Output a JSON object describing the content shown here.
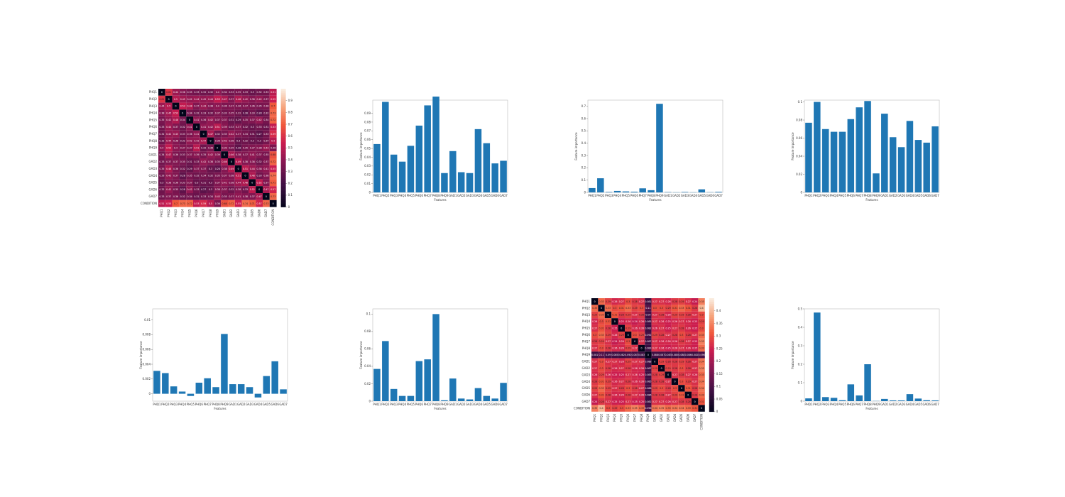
{
  "page": {
    "background": "#ffffff",
    "bar_color": "#1f77b4"
  },
  "labels": {
    "features": [
      "PHQ1",
      "PHQ2",
      "PHQ3",
      "PHQ4",
      "PHQ5",
      "PHQ6",
      "PHQ7",
      "PHQ8",
      "PHQ9",
      "GAD1",
      "GAD2",
      "GAD3",
      "GAD4",
      "GAD5",
      "GAD6",
      "GAD7"
    ],
    "features_cond": [
      "PHQ1",
      "PHQ2",
      "PHQ3",
      "PHQ4",
      "PHQ5",
      "PHQ6",
      "PHQ7",
      "PHQ8",
      "PHQ9",
      "GAD1",
      "GAD2",
      "GAD3",
      "GAD4",
      "GAD5",
      "GAD6",
      "GAD7",
      "CONDITION"
    ]
  },
  "chart_data": [
    {
      "id": "heatmap1",
      "type": "heatmap",
      "colormap": "rocket",
      "vmin": 0,
      "vmax": 1,
      "colorbar_ticks": [
        0,
        0.1,
        0.2,
        0.3,
        0.4,
        0.5,
        0.6,
        0.7,
        0.8,
        0.9
      ],
      "annot": true,
      "matrix": [
        [
          0,
          0.61,
          0.44,
          0.38,
          0.35,
          0.33,
          0.32,
          0.32,
          0.4,
          0.34,
          0.33,
          0.35,
          0.33,
          0.3,
          0.32,
          0.33,
          0.51
        ],
        [
          0.61,
          0,
          0.5,
          0.45,
          0.42,
          0.44,
          0.42,
          0.44,
          0.53,
          0.47,
          0.37,
          0.48,
          0.42,
          0.38,
          0.42,
          0.37,
          0.55
        ],
        [
          0.44,
          0.5,
          0,
          0.53,
          0.48,
          0.37,
          0.43,
          0.38,
          0.4,
          0.36,
          0.37,
          0.36,
          0.37,
          0.36,
          0.35,
          0.36,
          0.7
        ],
        [
          0.38,
          0.45,
          0.53,
          0,
          0.34,
          0.32,
          0.33,
          0.32,
          0.37,
          0.33,
          0.35,
          0.32,
          0.28,
          0.33,
          0.28,
          0.32,
          0.73
        ],
        [
          0.35,
          0.42,
          0.48,
          0.34,
          0,
          0.41,
          0.36,
          0.42,
          0.37,
          0.37,
          0.31,
          0.29,
          0.35,
          0.37,
          0.42,
          0.34,
          0.72
        ],
        [
          0.33,
          0.44,
          0.37,
          0.32,
          0.41,
          0,
          0.41,
          0.42,
          0.51,
          0.39,
          0.33,
          0.37,
          0.32,
          0.3,
          0.33,
          0.31,
          0.53
        ],
        [
          0.32,
          0.42,
          0.43,
          0.33,
          0.36,
          0.41,
          0,
          0.47,
          0.32,
          0.35,
          0.42,
          0.37,
          0.34,
          0.31,
          0.27,
          0.33,
          0.59
        ],
        [
          0.32,
          0.44,
          0.38,
          0.32,
          0.42,
          0.42,
          0.47,
          0,
          0.36,
          0.42,
          0.38,
          0.3,
          0.32,
          0.3,
          0.3,
          0.34,
          0.5
        ],
        [
          0.4,
          0.53,
          0.4,
          0.37,
          0.37,
          0.51,
          0.32,
          0.36,
          0,
          0.39,
          0.35,
          0.28,
          0.35,
          0.37,
          0.38,
          0.43,
          0.36
        ],
        [
          0.34,
          0.47,
          0.36,
          0.33,
          0.37,
          0.39,
          0.35,
          0.42,
          0.39,
          0,
          0.46,
          0.38,
          0.37,
          0.41,
          0.37,
          0.35,
          0.68
        ],
        [
          0.33,
          0.37,
          0.37,
          0.35,
          0.31,
          0.33,
          0.42,
          0.38,
          0.35,
          0.46,
          0,
          0.49,
          0.38,
          0.38,
          0.32,
          0.37,
          0.72
        ],
        [
          0.35,
          0.48,
          0.36,
          0.32,
          0.29,
          0.37,
          0.37,
          0.3,
          0.28,
          0.38,
          0.49,
          0,
          0.51,
          0.44,
          0.38,
          0.41,
          0.55
        ],
        [
          0.33,
          0.42,
          0.37,
          0.28,
          0.35,
          0.32,
          0.34,
          0.32,
          0.35,
          0.37,
          0.38,
          0.51,
          0,
          0.48,
          0.33,
          0.38,
          0.74
        ],
        [
          0.3,
          0.38,
          0.36,
          0.33,
          0.37,
          0.3,
          0.31,
          0.3,
          0.37,
          0.41,
          0.38,
          0.44,
          0.48,
          0,
          0.52,
          0.37,
          0.71
        ],
        [
          0.32,
          0.42,
          0.35,
          0.28,
          0.42,
          0.33,
          0.27,
          0.3,
          0.38,
          0.37,
          0.32,
          0.38,
          0.33,
          0.52,
          0,
          0.47,
          0.57
        ],
        [
          0.33,
          0.37,
          0.36,
          0.32,
          0.34,
          0.31,
          0.33,
          0.34,
          0.43,
          0.35,
          0.37,
          0.41,
          0.38,
          0.37,
          0.47,
          0,
          0.73
        ],
        [
          0.51,
          0.55,
          0.7,
          0.73,
          0.72,
          0.53,
          0.59,
          0.5,
          0.36,
          0.68,
          0.72,
          0.55,
          0.74,
          0.71,
          0.57,
          0.73,
          0
        ]
      ]
    },
    {
      "id": "bar1",
      "type": "bar",
      "xlabel": "Features",
      "ylabel": "Feature importance",
      "ylim": [
        0,
        0.105
      ],
      "yticks": [
        0,
        0.01,
        0.02,
        0.03,
        0.04,
        0.05,
        0.06,
        0.07,
        0.08,
        0.09
      ],
      "values": [
        0.055,
        0.103,
        0.043,
        0.035,
        0.053,
        0.076,
        0.099,
        0.109,
        0.022,
        0.047,
        0.023,
        0.022,
        0.072,
        0.056,
        0.033,
        0.036
      ]
    },
    {
      "id": "bar2",
      "type": "bar",
      "xlabel": "Features",
      "ylabel": "Feature importance",
      "ylim": [
        0,
        0.75
      ],
      "yticks": [
        0,
        0.1,
        0.2,
        0.3,
        0.4,
        0.5,
        0.6,
        0.7
      ],
      "values": [
        0.035,
        0.115,
        0.004,
        0.012,
        0.008,
        0.006,
        0.033,
        0.018,
        0.72,
        0.003,
        0.001,
        0.004,
        0.001,
        0.025,
        0.002,
        0.005
      ]
    },
    {
      "id": "bar3",
      "type": "bar",
      "xlabel": "Features",
      "ylabel": "Feature importance",
      "ylim": [
        0,
        0.102
      ],
      "yticks": [
        0,
        0.02,
        0.04,
        0.06,
        0.08,
        0.1
      ],
      "values": [
        0.077,
        0.1,
        0.07,
        0.067,
        0.067,
        0.081,
        0.094,
        0.101,
        0.021,
        0.087,
        0.061,
        0.05,
        0.079,
        0.058,
        0.055,
        0.073
      ]
    },
    {
      "id": "bar4",
      "type": "bar",
      "xlabel": "Features",
      "ylabel": "Feature importance",
      "ylim": [
        -0.001,
        0.0115
      ],
      "yticks": [
        0,
        0.002,
        0.004,
        0.006,
        0.008,
        0.01
      ],
      "values": [
        0.0031,
        0.0028,
        0.001,
        0.0003,
        -0.0003,
        0.0015,
        0.0021,
        0.0009,
        0.0081,
        0.0013,
        0.0013,
        0.0009,
        -0.0005,
        0.0024,
        0.0044,
        0.0006
      ]
    },
    {
      "id": "bar5",
      "type": "bar",
      "xlabel": "Features",
      "ylabel": "Feature importance",
      "ylim": [
        0,
        0.106
      ],
      "yticks": [
        0,
        0.02,
        0.04,
        0.06,
        0.08,
        0.1
      ],
      "values": [
        0.037,
        0.069,
        0.014,
        0.006,
        0.006,
        0.046,
        0.048,
        0.1,
        0.001,
        0.026,
        0.003,
        0.002,
        0.015,
        0.006,
        0.003,
        0.021
      ]
    },
    {
      "id": "heatmap2",
      "type": "heatmap",
      "colormap": "rocket",
      "vmin": 0,
      "vmax": 0.45,
      "colorbar_ticks": [
        0,
        0.05,
        0.1,
        0.15,
        0.2,
        0.25,
        0.3,
        0.35,
        0.4
      ],
      "annot": true,
      "matrix": [
        [
          0,
          0.33,
          0.29,
          0.26,
          0.27,
          0.3,
          0.28,
          0.27,
          0.081,
          0.27,
          0.27,
          0.26,
          0.28,
          0.29,
          0.27,
          0.24,
          0.35
        ],
        [
          0.33,
          0,
          0.33,
          0.3,
          0.31,
          0.33,
          0.29,
          0.3,
          0.11,
          0.3,
          0.3,
          0.29,
          0.31,
          0.33,
          0.31,
          0.28,
          0.4
        ],
        [
          0.29,
          0.33,
          0,
          0.31,
          0.28,
          0.29,
          0.27,
          0.28,
          0.09,
          0.27,
          0.28,
          0.26,
          0.29,
          0.29,
          0.28,
          0.27,
          0.3
        ],
        [
          0.26,
          0.3,
          0.31,
          0,
          0.25,
          0.26,
          0.24,
          0.26,
          0.085,
          0.27,
          0.26,
          0.25,
          0.26,
          0.27,
          0.26,
          0.25,
          0.29
        ],
        [
          0.27,
          0.31,
          0.28,
          0.25,
          0,
          0.29,
          0.26,
          0.26,
          0.082,
          0.26,
          0.27,
          0.25,
          0.27,
          0.28,
          0.26,
          0.25,
          0.3
        ],
        [
          0.3,
          0.33,
          0.29,
          0.26,
          0.29,
          0,
          0.3,
          0.29,
          0.092,
          0.29,
          0.28,
          0.27,
          0.28,
          0.3,
          0.28,
          0.27,
          0.33
        ],
        [
          0.28,
          0.29,
          0.27,
          0.24,
          0.26,
          0.3,
          0,
          0.27,
          0.087,
          0.27,
          0.26,
          0.26,
          0.26,
          0.28,
          0.27,
          0.25,
          0.35
        ],
        [
          0.27,
          0.3,
          0.28,
          0.26,
          0.26,
          0.29,
          0.27,
          0,
          0.083,
          0.27,
          0.26,
          0.25,
          0.26,
          0.27,
          0.26,
          0.25,
          0.33
        ],
        [
          0.081,
          0.11,
          0.09,
          0.085,
          0.082,
          0.092,
          0.087,
          0.083,
          0,
          0.088,
          0.087,
          0.083,
          0.085,
          0.088,
          0.086,
          0.082,
          0.096
        ],
        [
          0.27,
          0.3,
          0.27,
          0.27,
          0.26,
          0.29,
          0.27,
          0.27,
          0.088,
          0,
          0.29,
          0.28,
          0.28,
          0.29,
          0.28,
          0.27,
          0.34
        ],
        [
          0.27,
          0.3,
          0.28,
          0.26,
          0.27,
          0.28,
          0.26,
          0.26,
          0.087,
          0.29,
          0,
          0.29,
          0.28,
          0.3,
          0.28,
          0.27,
          0.35
        ],
        [
          0.26,
          0.29,
          0.26,
          0.25,
          0.25,
          0.27,
          0.26,
          0.25,
          0.083,
          0.28,
          0.29,
          0,
          0.27,
          0.28,
          0.27,
          0.26,
          0.33
        ],
        [
          0.28,
          0.31,
          0.29,
          0.26,
          0.27,
          0.28,
          0.26,
          0.26,
          0.085,
          0.28,
          0.28,
          0.27,
          0,
          0.3,
          0.29,
          0.27,
          0.34
        ],
        [
          0.29,
          0.33,
          0.29,
          0.27,
          0.28,
          0.3,
          0.28,
          0.27,
          0.088,
          0.29,
          0.3,
          0.28,
          0.3,
          0,
          0.31,
          0.28,
          0.34
        ],
        [
          0.27,
          0.31,
          0.28,
          0.26,
          0.26,
          0.28,
          0.27,
          0.26,
          0.086,
          0.28,
          0.28,
          0.27,
          0.29,
          0.31,
          0,
          0.28,
          0.33
        ],
        [
          0.24,
          0.28,
          0.27,
          0.25,
          0.25,
          0.27,
          0.25,
          0.25,
          0.082,
          0.27,
          0.27,
          0.26,
          0.27,
          0.28,
          0.28,
          0,
          0.31
        ],
        [
          0.35,
          0.4,
          0.3,
          0.29,
          0.3,
          0.33,
          0.35,
          0.33,
          0.096,
          0.34,
          0.35,
          0.33,
          0.34,
          0.34,
          0.33,
          0.31,
          0
        ]
      ]
    },
    {
      "id": "bar6",
      "type": "bar",
      "xlabel": "Features",
      "ylabel": "Feature importance",
      "ylim": [
        0,
        0.5
      ],
      "yticks": [
        0,
        0.1,
        0.2,
        0.3,
        0.4,
        0.5
      ],
      "values": [
        0.015,
        0.48,
        0.022,
        0.018,
        0.005,
        0.091,
        0.031,
        0.2,
        0.001,
        0.012,
        0.004,
        0.004,
        0.038,
        0.014,
        0.005,
        0.004
      ]
    }
  ]
}
